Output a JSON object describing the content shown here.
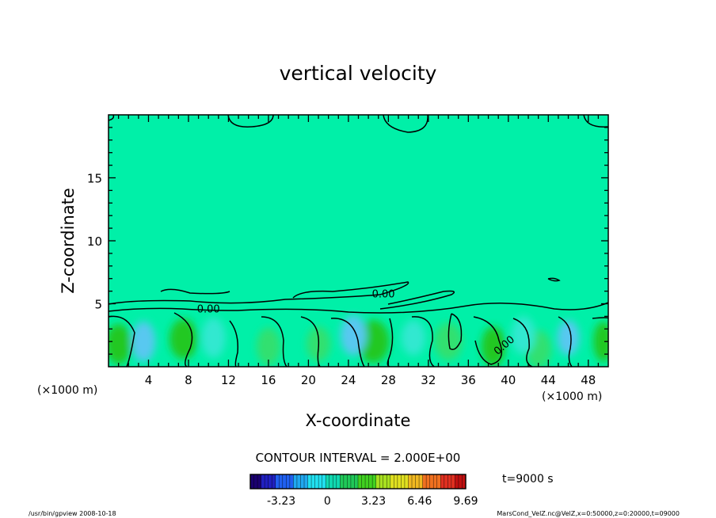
{
  "chart_data": {
    "type": "heatmap",
    "title": "vertical velocity",
    "xlabel": "X-coordinate",
    "ylabel": "Z-coordinate",
    "x_unit_left": "(×1000 m)",
    "x_unit_right": "(×1000 m)",
    "xlim": [
      0,
      50
    ],
    "ylim": [
      0,
      20
    ],
    "x_ticks": [
      4,
      8,
      12,
      16,
      20,
      24,
      28,
      32,
      36,
      40,
      44,
      48
    ],
    "y_ticks": [
      5,
      10,
      15
    ],
    "contour_interval_text": "CONTOUR INTERVAL = 2.000E+00",
    "contour_labels": [
      {
        "text": "0.00",
        "x": 10.0,
        "z": 4.3
      },
      {
        "text": "0.00",
        "x": 27.5,
        "z": 5.5
      },
      {
        "text": "0.00",
        "x": 39.8,
        "z": 1.5
      }
    ],
    "colorbar": {
      "tick_labels": [
        "-3.23",
        "0",
        "3.23",
        "6.46",
        "9.69"
      ],
      "values": [
        -3.23,
        0,
        3.23,
        6.46,
        9.69
      ],
      "vmin": -5.4,
      "vmax": 9.69
    },
    "time_label": "t=9000 s",
    "background_value": 0,
    "colors": {
      "background_field": "#00f0a8",
      "positive_weak": "#30e070",
      "positive_strong": "#20c820",
      "negative_weak": "#30e8d0",
      "negative_strong": "#58c8f0"
    }
  },
  "footer": {
    "left": "/usr/bin/gpview   2008-10-18",
    "right": "MarsCond_VelZ.nc@VelZ,x=0:50000,z=0:20000,t=09000"
  }
}
